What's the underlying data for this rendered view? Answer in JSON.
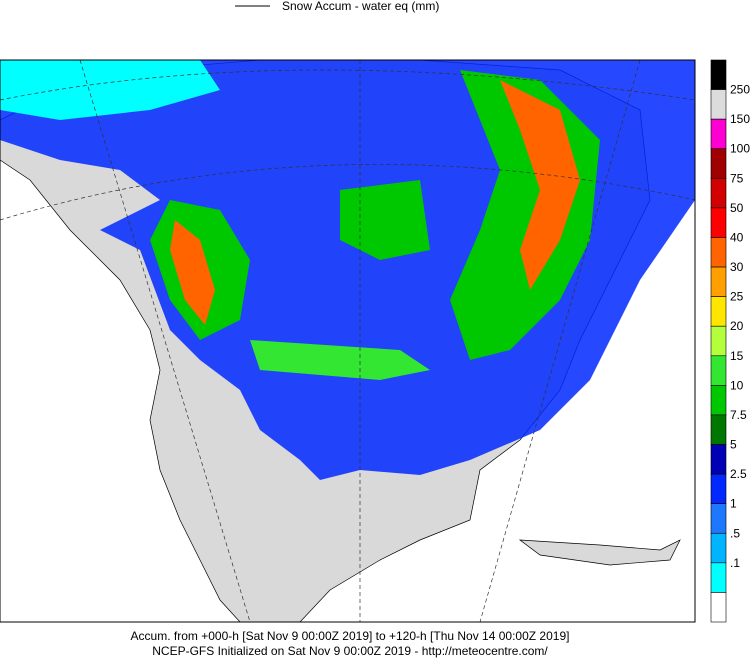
{
  "legend": {
    "label": "Snow Accum - water eq (mm)"
  },
  "colorbar": {
    "labels": [
      "250",
      "150",
      "100",
      "75",
      "50",
      "40",
      "30",
      "25",
      "20",
      "15",
      "10",
      "7.5",
      "5",
      "2.5",
      "1",
      ".5",
      ".1"
    ],
    "colors": [
      "#000000",
      "#dcdcdc",
      "#ff00d2",
      "#a00000",
      "#d20000",
      "#ff0000",
      "#ff6400",
      "#ffa000",
      "#ffe600",
      "#b4ff3c",
      "#32e632",
      "#00c800",
      "#007800",
      "#0000b4",
      "#0028ff",
      "#1e78ff",
      "#00b4ff",
      "#00ffff",
      "#ffffff"
    ]
  },
  "footer": {
    "lines": [
      "Accum. from +000-h [Sat Nov 9 00:00Z 2019] to +120-h [Thu Nov 14 00:00Z 2019]",
      "NCEP-GFS Initialized on Sat Nov 9 00:00Z 2019 - http://meteocentre.com/"
    ]
  }
}
